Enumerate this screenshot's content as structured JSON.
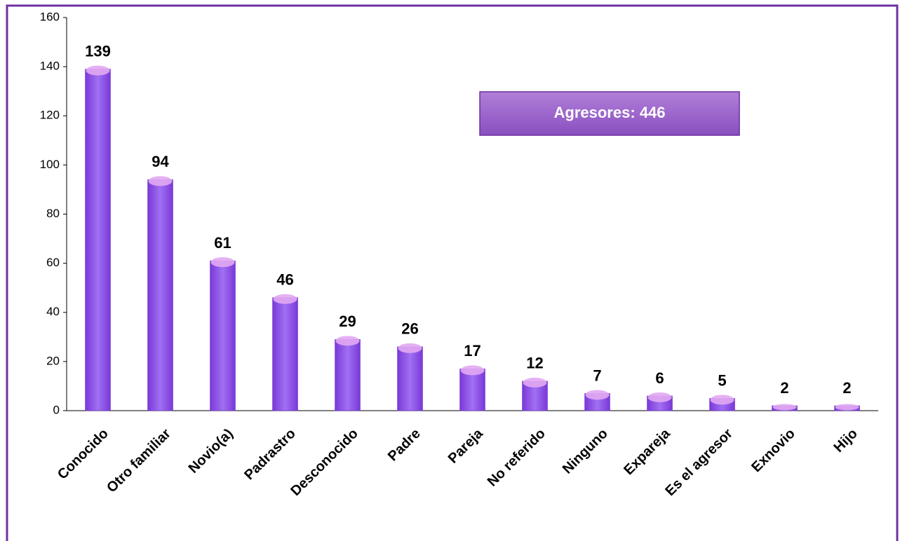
{
  "chart_data": {
    "type": "bar",
    "categories": [
      "Conocido",
      "Otro familiar",
      "Novio(a)",
      "Padrastro",
      "Desconocido",
      "Padre",
      "Pareja",
      "No referido",
      "Ninguno",
      "Expareja",
      "Es el agresor",
      "Exnovio",
      "Hijo"
    ],
    "values": [
      139,
      94,
      61,
      46,
      29,
      26,
      17,
      12,
      7,
      6,
      5,
      2,
      2
    ],
    "color": "#8c4ae6",
    "ylim": [
      0,
      160
    ],
    "yticks": [
      0,
      20,
      40,
      60,
      80,
      100,
      120,
      140,
      160
    ],
    "annotation": "Agresores: 446"
  }
}
